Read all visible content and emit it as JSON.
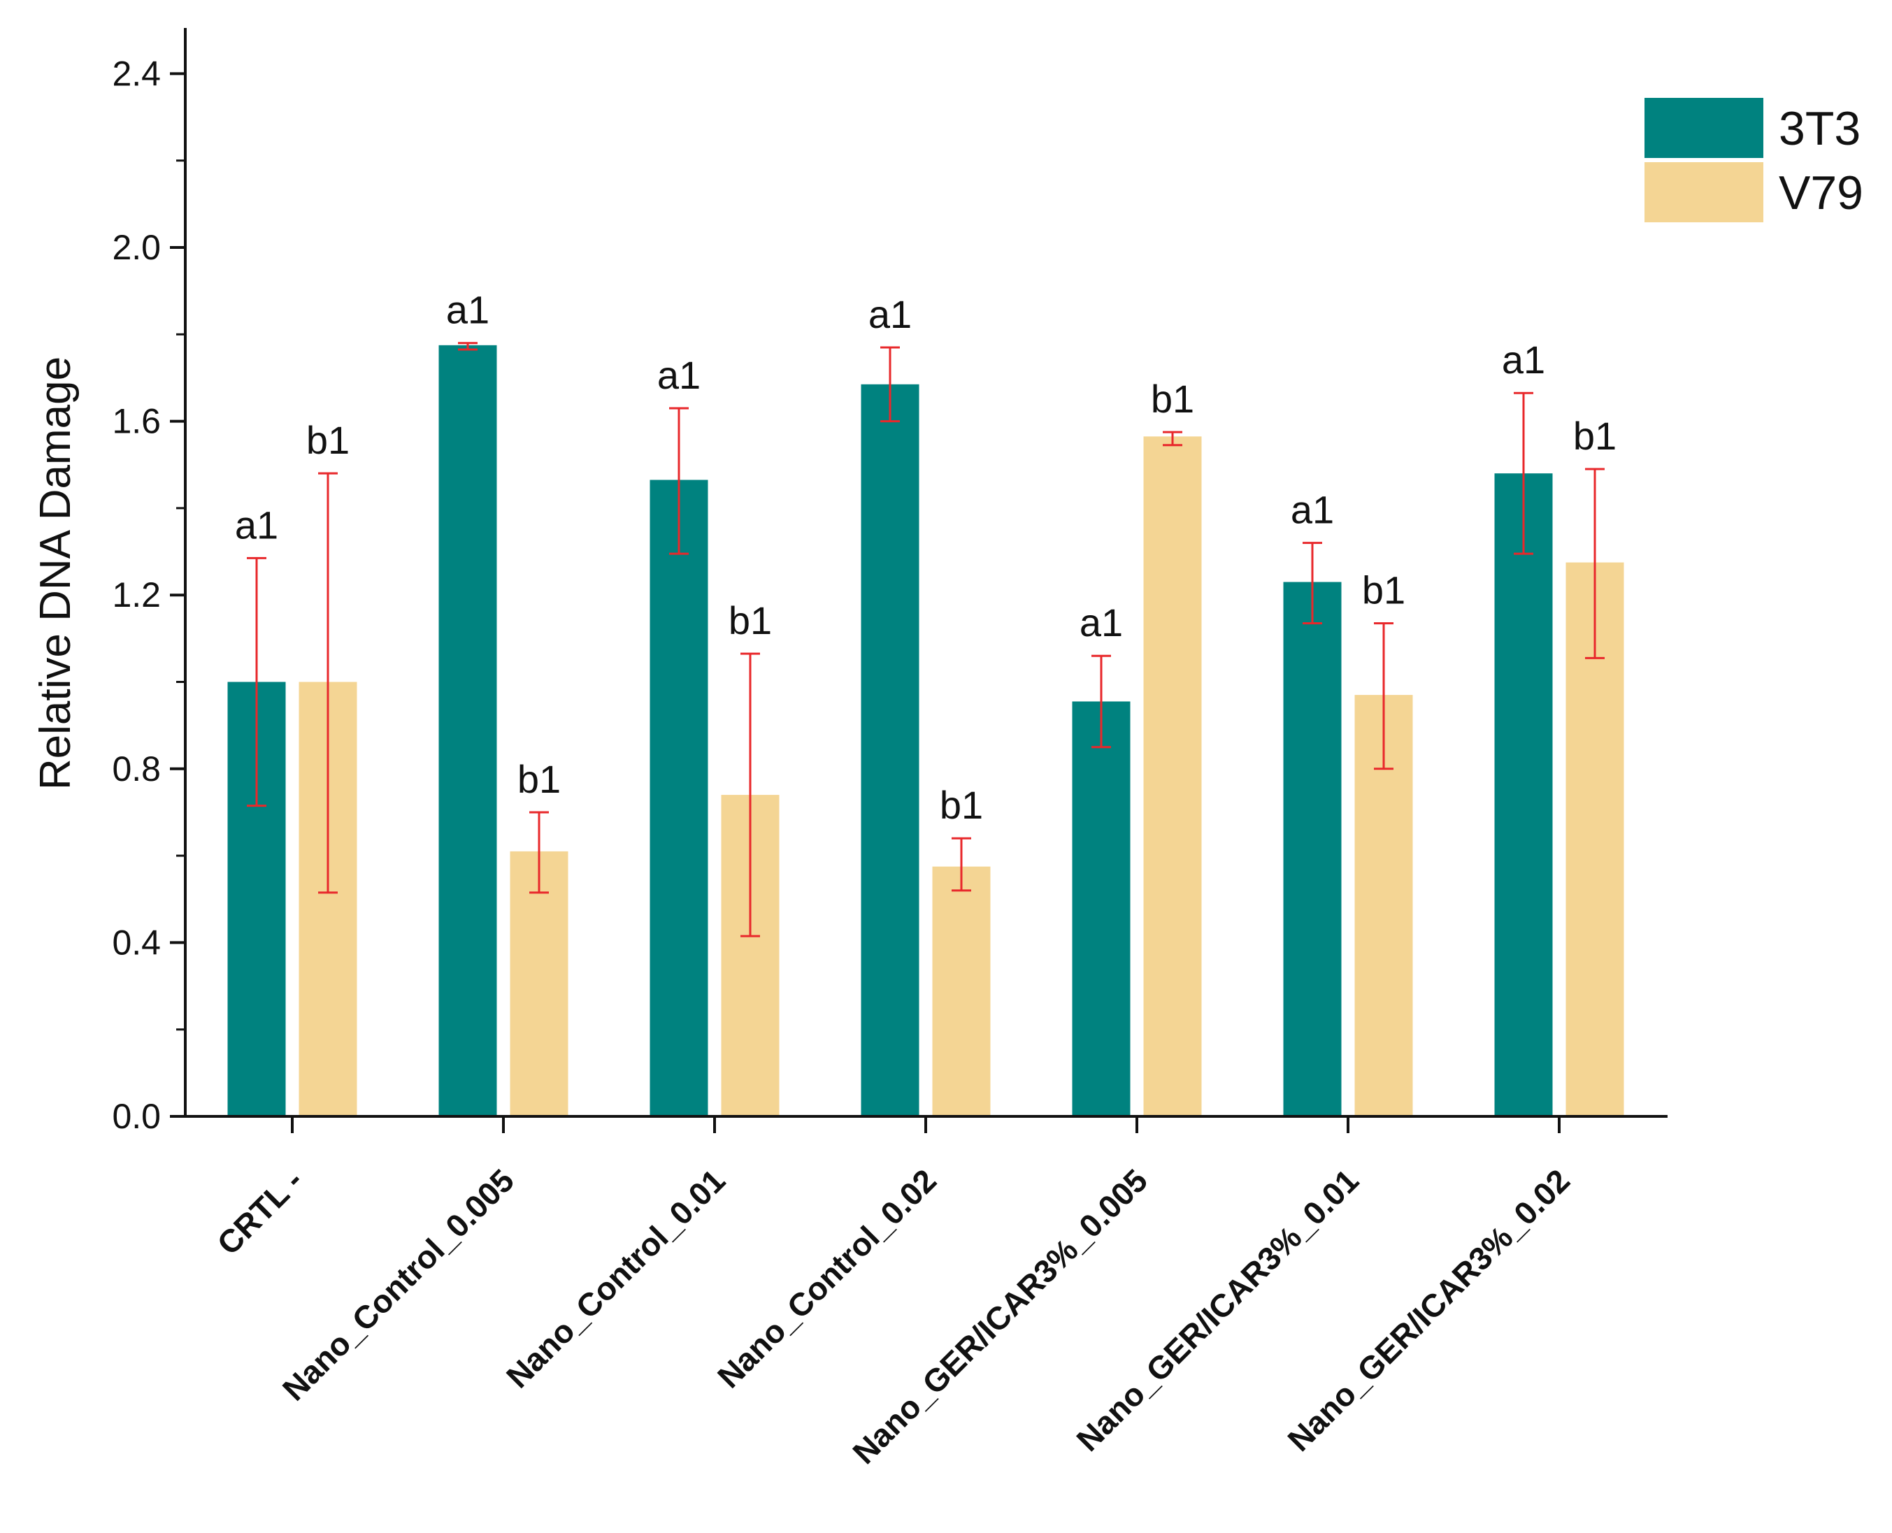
{
  "chart_data": {
    "type": "bar",
    "title": "",
    "xlabel": "",
    "ylabel": "Relative DNA Damage",
    "ylim": [
      0.0,
      2.5
    ],
    "yticks": [
      "0.0",
      "0.4",
      "0.8",
      "1.2",
      "1.6",
      "2.0",
      "2.4"
    ],
    "categories": [
      "CRTL -",
      "Nano_Control_0.005",
      "Nano_Control_0.01",
      "Nano_Control_0.02",
      "Nano_GER/ICAR3%_0.005",
      "Nano_GER/ICAR3%_0.01",
      "Nano_GER/ICAR3%_0.02"
    ],
    "legend_position": "top-right",
    "grid": false,
    "series": [
      {
        "name": "3T3",
        "color": "#00827F",
        "values": [
          1.0,
          1.775,
          1.465,
          1.685,
          0.955,
          1.23,
          1.48
        ],
        "error_low": [
          0.715,
          1.765,
          1.295,
          1.6,
          0.85,
          1.135,
          1.295
        ],
        "error_high": [
          1.285,
          1.78,
          1.63,
          1.77,
          1.06,
          1.32,
          1.665
        ],
        "labels": [
          "a1",
          "a1",
          "a1",
          "a1",
          "a1",
          "a1",
          "a1"
        ]
      },
      {
        "name": "V79",
        "color": "#F4D594",
        "values": [
          1.0,
          0.61,
          0.74,
          0.575,
          1.565,
          0.97,
          1.275
        ],
        "error_low": [
          0.515,
          0.515,
          0.415,
          0.52,
          1.545,
          0.8,
          1.055
        ],
        "error_high": [
          1.48,
          0.7,
          1.065,
          0.64,
          1.575,
          1.135,
          1.49
        ],
        "labels": [
          "b1",
          "b1",
          "b1",
          "b1",
          "b1",
          "b1",
          "b1"
        ]
      }
    ],
    "error_bar_color": "#E8282B",
    "axis_color": "#111111"
  }
}
